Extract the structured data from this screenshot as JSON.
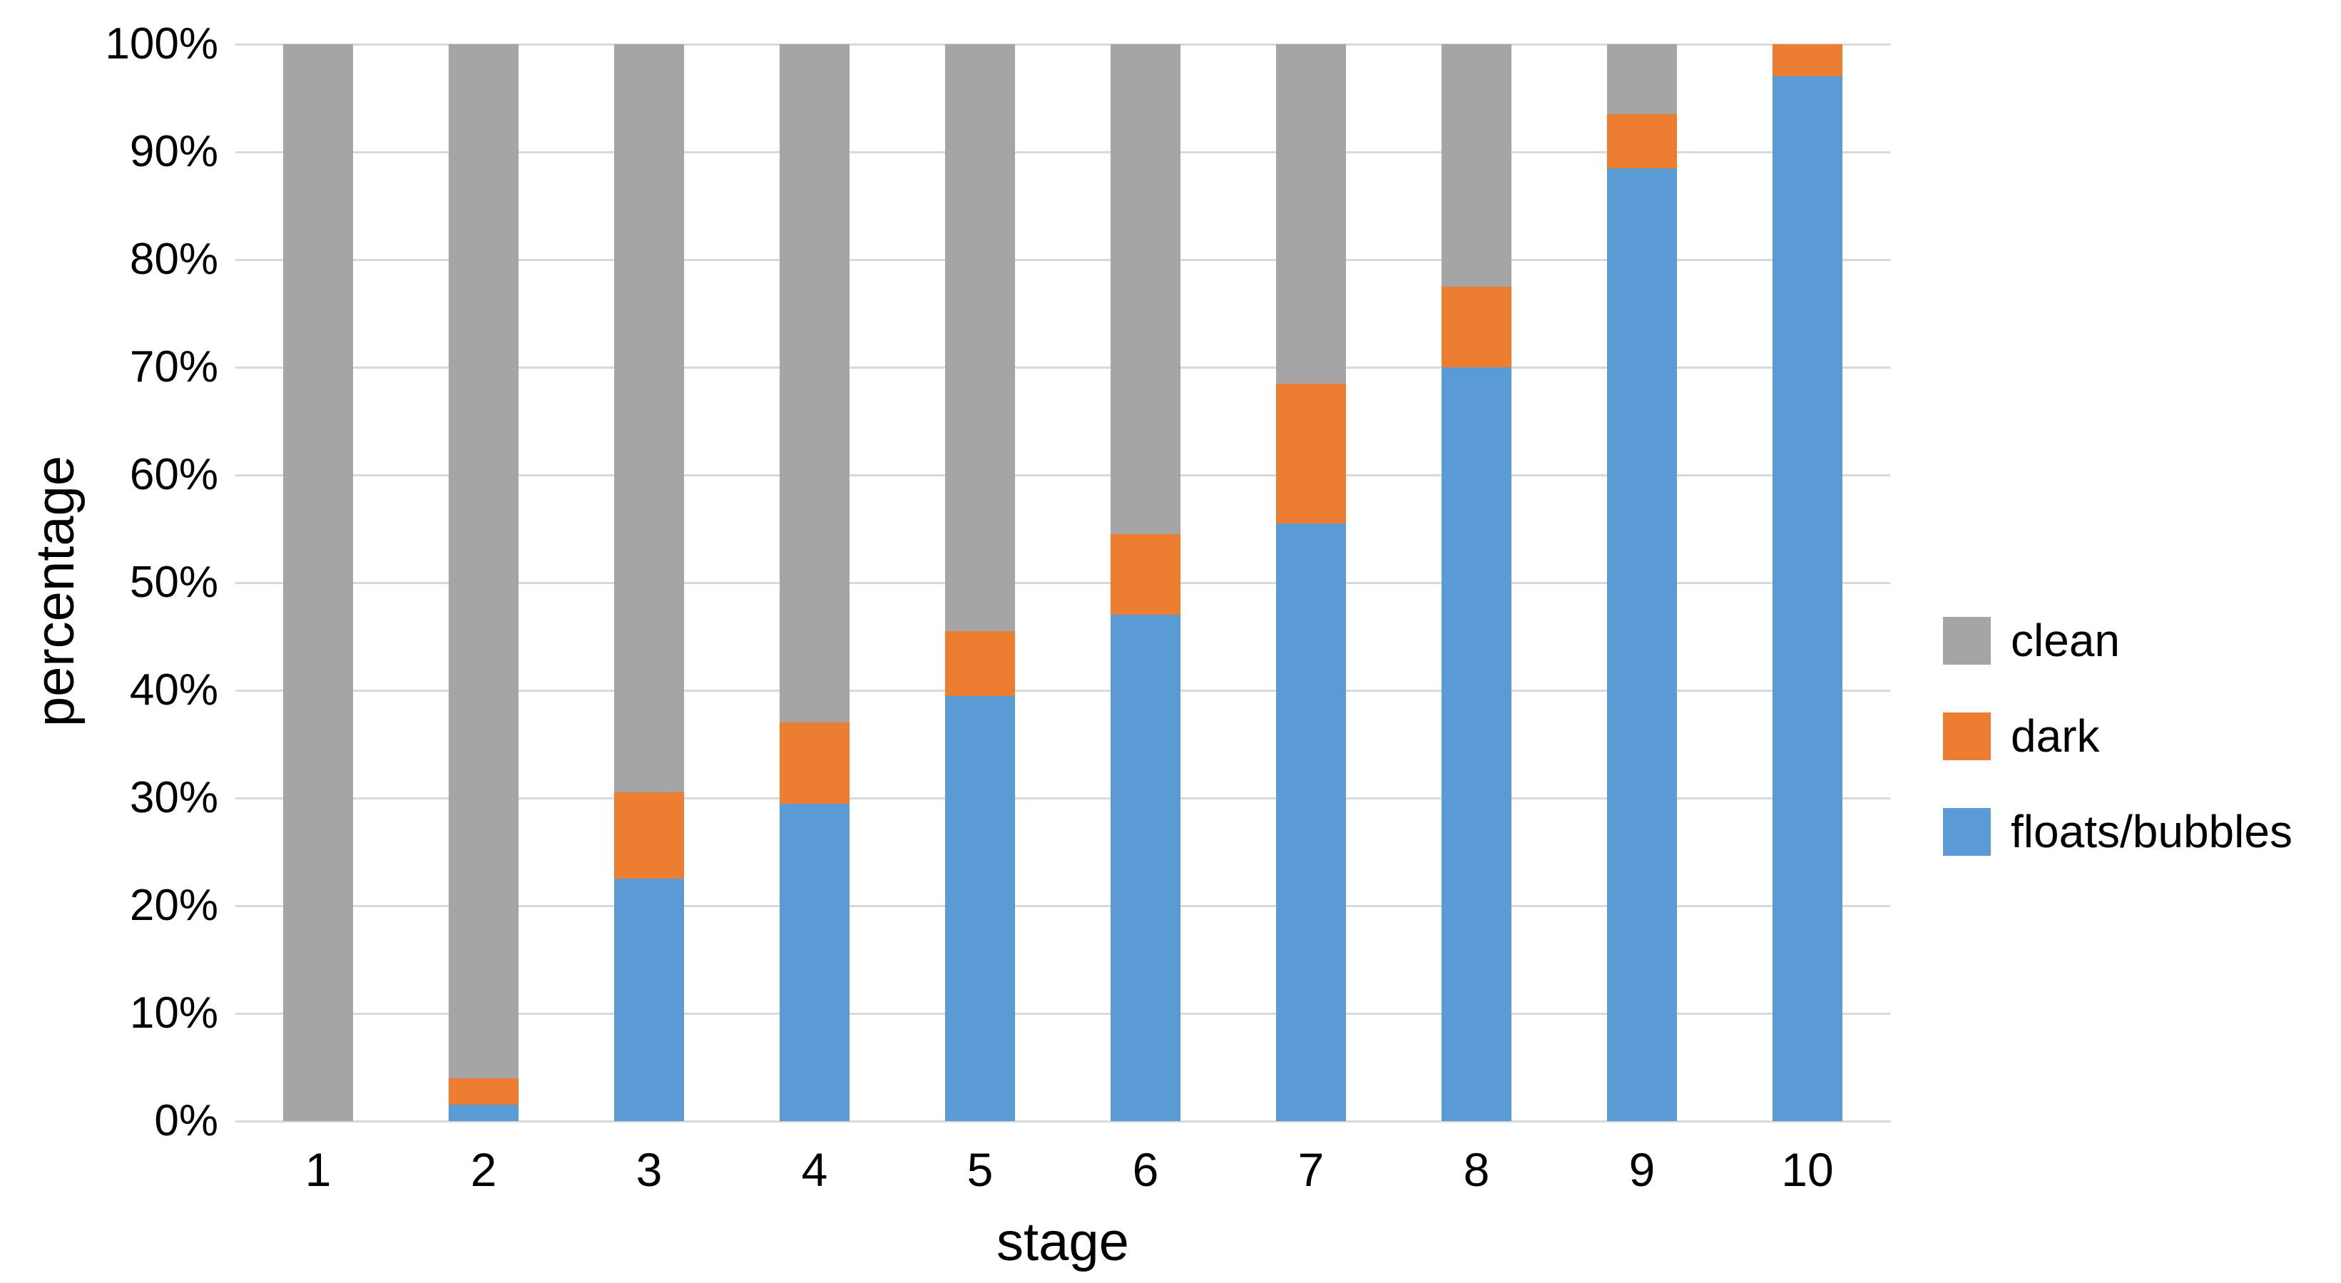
{
  "chart_data": {
    "type": "bar",
    "stacked": true,
    "stacked_100_percent": true,
    "title": "",
    "xlabel": "stage",
    "ylabel": "percentage",
    "categories": [
      "1",
      "2",
      "3",
      "4",
      "5",
      "6",
      "7",
      "8",
      "9",
      "10"
    ],
    "series": [
      {
        "name": "floats/bubbles",
        "color": "#5b9bd5",
        "values": [
          0,
          1.5,
          22.5,
          29.5,
          39.5,
          47,
          55.5,
          70,
          88.5,
          97
        ]
      },
      {
        "name": "dark",
        "color": "#ed7d31",
        "values": [
          0,
          2.5,
          8,
          7.5,
          6,
          7.5,
          13,
          7.5,
          5,
          3
        ]
      },
      {
        "name": "clean",
        "color": "#a5a5a5",
        "values": [
          100,
          96,
          69.5,
          63,
          54.5,
          45.5,
          31.5,
          22.5,
          6.5,
          0
        ]
      }
    ],
    "ylim": [
      0,
      100
    ],
    "ytick_step": 10,
    "ytick_labels": [
      "0%",
      "10%",
      "20%",
      "30%",
      "40%",
      "50%",
      "60%",
      "70%",
      "80%",
      "90%",
      "100%"
    ],
    "grid": "horizontal",
    "gridline_color": "#d9d9d9",
    "legend": {
      "position": "right",
      "items": [
        {
          "label": "clean",
          "color": "#a5a5a5"
        },
        {
          "label": "dark",
          "color": "#ed7d31"
        },
        {
          "label": "floats/bubbles",
          "color": "#5b9bd5"
        }
      ]
    }
  },
  "colors": {
    "background": "#ffffff",
    "text": "#000000"
  }
}
